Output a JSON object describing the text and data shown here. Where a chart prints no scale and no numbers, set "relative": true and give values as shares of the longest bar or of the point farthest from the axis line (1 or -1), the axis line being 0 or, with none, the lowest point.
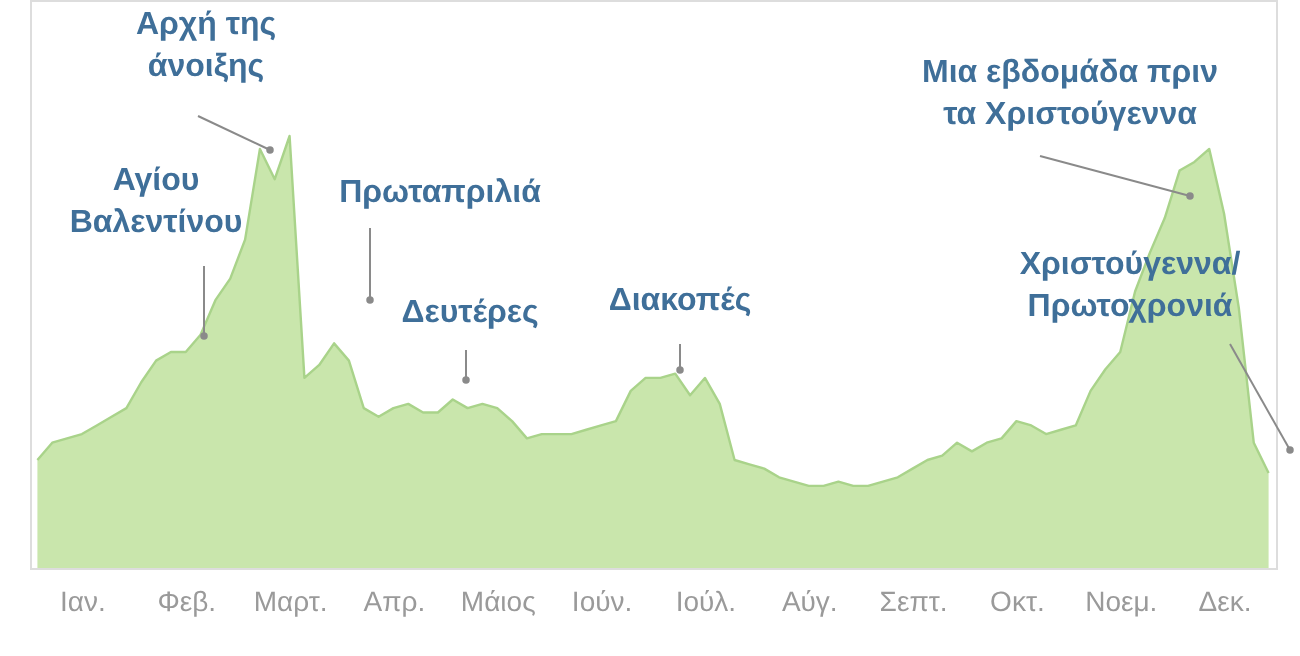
{
  "chart_data": {
    "type": "area",
    "relative": true,
    "categories": [
      null,
      null,
      null,
      "Ιαν.",
      null,
      null,
      null,
      null,
      null,
      null,
      "Φεβ.",
      null,
      null,
      null,
      null,
      null,
      null,
      "Μαρτ.",
      null,
      null,
      null,
      null,
      null,
      null,
      "Απρ.",
      null,
      null,
      null,
      null,
      null,
      null,
      "Μάιος",
      null,
      null,
      null,
      null,
      null,
      null,
      "Ιούν.",
      null,
      null,
      null,
      null,
      null,
      null,
      "Ιούλ.",
      null,
      null,
      null,
      null,
      null,
      null,
      "Αύγ.",
      null,
      null,
      null,
      null,
      null,
      null,
      "Σεπτ.",
      null,
      null,
      null,
      null,
      null,
      null,
      "Οκτ.",
      null,
      null,
      null,
      null,
      null,
      null,
      "Νοεμ.",
      null,
      null,
      null,
      null,
      null,
      null,
      "Δεκ.",
      null,
      null,
      null
    ],
    "series": [
      {
        "color": "#c9e6ac",
        "values": [
          0.25,
          0.29,
          0.3,
          0.31,
          0.33,
          0.35,
          0.37,
          0.43,
          0.48,
          0.5,
          0.5,
          0.54,
          0.62,
          0.67,
          0.76,
          0.97,
          0.9,
          1,
          0.44,
          0.47,
          0.52,
          0.48,
          0.37,
          0.35,
          0.37,
          0.38,
          0.36,
          0.36,
          0.39,
          0.37,
          0.38,
          0.37,
          0.34,
          0.3,
          0.31,
          0.31,
          0.31,
          0.32,
          0.33,
          0.34,
          0.41,
          0.44,
          0.44,
          0.45,
          0.4,
          0.44,
          0.38,
          0.25,
          0.24,
          0.23,
          0.21,
          0.2,
          0.19,
          0.19,
          0.2,
          0.19,
          0.19,
          0.2,
          0.21,
          0.23,
          0.25,
          0.26,
          0.29,
          0.27,
          0.29,
          0.3,
          0.34,
          0.33,
          0.31,
          0.32,
          0.33,
          0.41,
          0.46,
          0.5,
          0.64,
          0.73,
          0.81,
          0.92,
          0.94,
          0.97,
          0.82,
          0.6,
          0.29,
          0.22
        ]
      }
    ],
    "annotations": [
      "Αγίου\nΒαλεντίνου",
      "Αρχή της\nάνοιξης",
      "Πρωταπριλιά",
      "Δευτέρες",
      "Διακοπές",
      "Μια εβδομάδα πριν\nτα Χριστούγεννα",
      "Χριστούγεννα/\nΠρωτοχρονιά"
    ]
  }
}
